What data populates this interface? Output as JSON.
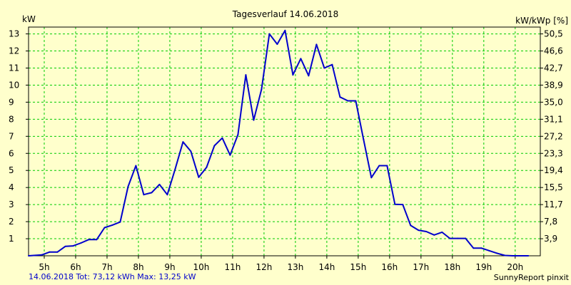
{
  "chart_data": {
    "type": "line",
    "title": "Tagesverlauf 14.06.2018",
    "ylabel_left": "kW",
    "ylabel_right": "kW/kWp [%]",
    "xlim": [
      4.5,
      20.8
    ],
    "ylim": [
      0,
      13.4
    ],
    "x_ticks": [
      5,
      6,
      7,
      8,
      9,
      10,
      11,
      12,
      13,
      14,
      15,
      16,
      17,
      18,
      19,
      20
    ],
    "x_tick_labels": [
      "5h",
      "6h",
      "7h",
      "8h",
      "9h",
      "10h",
      "11h",
      "12h",
      "13h",
      "14h",
      "15h",
      "16h",
      "17h",
      "18h",
      "19h",
      "20h"
    ],
    "y_ticks_left": [
      1,
      2,
      3,
      4,
      5,
      6,
      7,
      8,
      9,
      10,
      11,
      12,
      13
    ],
    "y_ticks_right": [
      1,
      2,
      3,
      4,
      5,
      6,
      7,
      8,
      9,
      10,
      11,
      12,
      13
    ],
    "y_tick_labels_right": [
      "3,9",
      "7,8",
      "11,7",
      "15,5",
      "19,4",
      "23,3",
      "27,2",
      "31,1",
      "35,0",
      "38,9",
      "42,7",
      "46,6",
      "50,5"
    ],
    "grid": true,
    "series": [
      {
        "x": [
          4.5,
          4.92,
          5.17,
          5.42,
          5.67,
          5.92,
          6.17,
          6.42,
          6.67,
          6.92,
          7.17,
          7.42,
          7.67,
          7.92,
          8.17,
          8.42,
          8.67,
          8.92,
          9.17,
          9.42,
          9.67,
          9.92,
          10.17,
          10.42,
          10.67,
          10.92,
          11.17,
          11.42,
          11.67,
          11.92,
          12.17,
          12.42,
          12.67,
          12.92,
          13.17,
          13.42,
          13.67,
          13.92,
          14.17,
          14.42,
          14.67,
          14.92,
          15.17,
          15.42,
          15.67,
          15.92,
          16.17,
          16.42,
          16.67,
          16.92,
          17.17,
          17.42,
          17.67,
          17.92,
          18.17,
          18.42,
          18.67,
          18.92,
          19.17,
          19.42,
          19.67,
          19.92,
          20.17,
          20.42
        ],
        "values": [
          0.0,
          0.05,
          0.22,
          0.22,
          0.55,
          0.58,
          0.75,
          0.95,
          0.95,
          1.65,
          1.8,
          1.98,
          4.05,
          5.28,
          3.58,
          3.7,
          4.18,
          3.58,
          5.08,
          6.67,
          6.12,
          4.6,
          5.18,
          6.45,
          6.9,
          5.9,
          7.1,
          10.6,
          7.95,
          9.75,
          13.0,
          12.4,
          13.2,
          10.6,
          11.55,
          10.55,
          12.38,
          11.0,
          11.2,
          9.3,
          9.08,
          9.08,
          6.82,
          4.58,
          5.28,
          5.28,
          3.02,
          3.0,
          1.78,
          1.5,
          1.42,
          1.22,
          1.38,
          1.02,
          1.02,
          1.02,
          0.45,
          0.45,
          0.3,
          0.15,
          0.02,
          0.0,
          0.0,
          0.0
        ]
      }
    ]
  },
  "footer": {
    "summary": "14.06.2018 Tot: 73,12 kWh Max: 13,25 kW",
    "brand": "SunnyReport pinxit"
  },
  "colors": {
    "background": "#ffffcc",
    "grid": "#00cc00",
    "line": "#0000cc",
    "frame": "#000000"
  }
}
